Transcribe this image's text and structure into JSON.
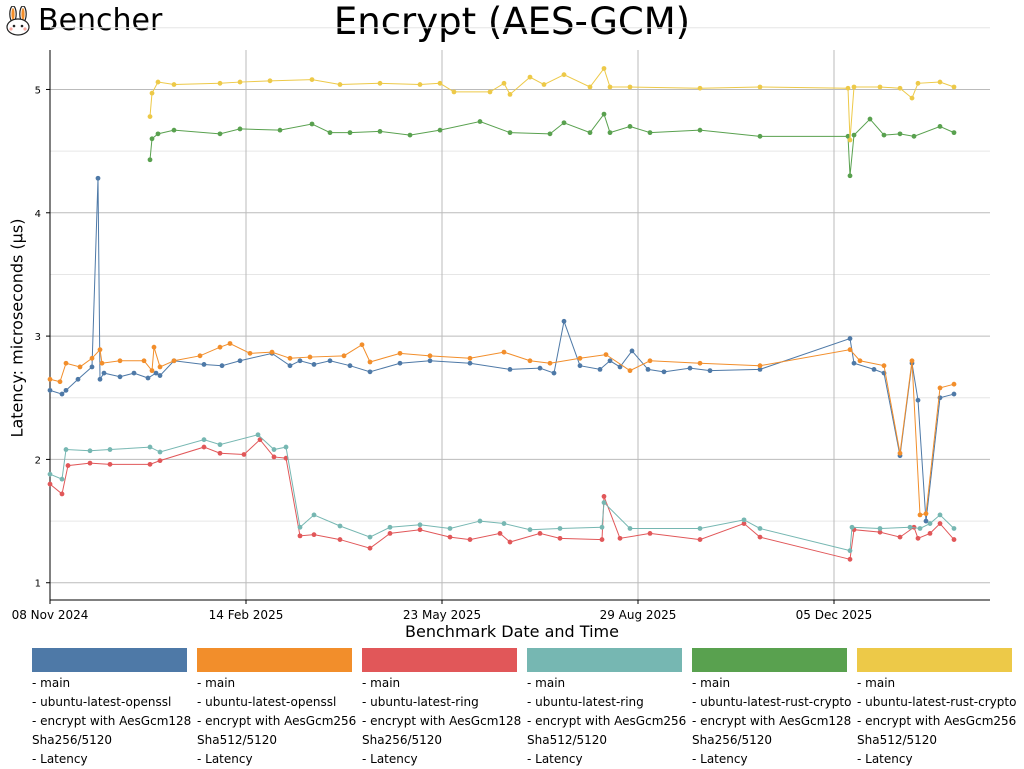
{
  "brand": {
    "name": "Bencher",
    "logo": "rabbit-icon"
  },
  "chart_data": {
    "type": "line",
    "title": "Encrypt (AES-GCM)",
    "xlabel": "Benchmark Date and Time",
    "ylabel": "Latency: microseconds (µs)",
    "xlim": [
      "2024-11-08",
      "2026-02-21"
    ],
    "ylim": [
      0.86,
      5.32
    ],
    "yticks": [
      1,
      2,
      3,
      4,
      5
    ],
    "xticks": [
      {
        "date": "2024-11-08",
        "label": "08 Nov 2024"
      },
      {
        "date": "2025-02-14",
        "label": "14 Feb 2025"
      },
      {
        "date": "2025-05-23",
        "label": "23 May 2025"
      },
      {
        "date": "2025-08-29",
        "label": "29 Aug 2025"
      },
      {
        "date": "2025-12-05",
        "label": "05 Dec 2025"
      }
    ],
    "grid": true,
    "legend": "bottom",
    "series": [
      {
        "color": "#4e79a7",
        "legend": [
          "- main",
          "- ubuntu-latest-openssl",
          "- encrypt with AesGcm128Sha256/5120",
          "- Latency"
        ],
        "points": [
          [
            "2024-11-08",
            2.56
          ],
          [
            "2024-11-14",
            2.53
          ],
          [
            "2024-11-16",
            2.56
          ],
          [
            "2024-11-22",
            2.65
          ],
          [
            "2024-11-29",
            2.75
          ],
          [
            "2024-12-02",
            4.28
          ],
          [
            "2024-12-03",
            2.65
          ],
          [
            "2024-12-05",
            2.7
          ],
          [
            "2024-12-13",
            2.67
          ],
          [
            "2024-12-20",
            2.7
          ],
          [
            "2024-12-27",
            2.66
          ],
          [
            "2024-12-31",
            2.7
          ],
          [
            "2025-01-02",
            2.68
          ],
          [
            "2025-01-09",
            2.8
          ],
          [
            "2025-01-24",
            2.77
          ],
          [
            "2025-02-02",
            2.76
          ],
          [
            "2025-02-11",
            2.8
          ],
          [
            "2025-02-27",
            2.86
          ],
          [
            "2025-03-08",
            2.76
          ],
          [
            "2025-03-13",
            2.8
          ],
          [
            "2025-03-20",
            2.77
          ],
          [
            "2025-03-28",
            2.8
          ],
          [
            "2025-04-07",
            2.76
          ],
          [
            "2025-04-17",
            2.71
          ],
          [
            "2025-05-02",
            2.78
          ],
          [
            "2025-05-17",
            2.8
          ],
          [
            "2025-06-06",
            2.78
          ],
          [
            "2025-06-26",
            2.73
          ],
          [
            "2025-07-11",
            2.74
          ],
          [
            "2025-07-18",
            2.7
          ],
          [
            "2025-07-23",
            3.12
          ],
          [
            "2025-07-31",
            2.76
          ],
          [
            "2025-08-10",
            2.73
          ],
          [
            "2025-08-15",
            2.8
          ],
          [
            "2025-08-20",
            2.75
          ],
          [
            "2025-08-26",
            2.88
          ],
          [
            "2025-09-03",
            2.73
          ],
          [
            "2025-09-11",
            2.71
          ],
          [
            "2025-09-24",
            2.74
          ],
          [
            "2025-10-04",
            2.72
          ],
          [
            "2025-10-29",
            2.73
          ],
          [
            "2025-12-13",
            2.98
          ],
          [
            "2025-12-15",
            2.78
          ],
          [
            "2025-12-25",
            2.73
          ],
          [
            "2025-12-30",
            2.7
          ],
          [
            "2026-01-07",
            2.03
          ],
          [
            "2026-01-13",
            2.78
          ],
          [
            "2026-01-16",
            2.48
          ],
          [
            "2026-01-20",
            1.5
          ],
          [
            "2026-01-27",
            2.5
          ],
          [
            "2026-02-03",
            2.53
          ]
        ]
      },
      {
        "color": "#f28e2b",
        "legend": [
          "- main",
          "- ubuntu-latest-openssl",
          "- encrypt with AesGcm256Sha512/5120",
          "- Latency"
        ],
        "points": [
          [
            "2024-11-08",
            2.65
          ],
          [
            "2024-11-13",
            2.63
          ],
          [
            "2024-11-16",
            2.78
          ],
          [
            "2024-11-23",
            2.75
          ],
          [
            "2024-11-29",
            2.82
          ],
          [
            "2024-12-03",
            2.89
          ],
          [
            "2024-12-04",
            2.78
          ],
          [
            "2024-12-13",
            2.8
          ],
          [
            "2024-12-25",
            2.8
          ],
          [
            "2024-12-29",
            2.72
          ],
          [
            "2024-12-30",
            2.91
          ],
          [
            "2025-01-02",
            2.75
          ],
          [
            "2025-01-09",
            2.8
          ],
          [
            "2025-01-22",
            2.84
          ],
          [
            "2025-02-01",
            2.91
          ],
          [
            "2025-02-06",
            2.94
          ],
          [
            "2025-02-16",
            2.86
          ],
          [
            "2025-02-27",
            2.87
          ],
          [
            "2025-03-08",
            2.82
          ],
          [
            "2025-03-18",
            2.83
          ],
          [
            "2025-04-04",
            2.84
          ],
          [
            "2025-04-13",
            2.93
          ],
          [
            "2025-04-17",
            2.79
          ],
          [
            "2025-05-02",
            2.86
          ],
          [
            "2025-05-17",
            2.84
          ],
          [
            "2025-06-06",
            2.82
          ],
          [
            "2025-06-23",
            2.87
          ],
          [
            "2025-07-06",
            2.8
          ],
          [
            "2025-07-16",
            2.78
          ],
          [
            "2025-07-31",
            2.82
          ],
          [
            "2025-08-13",
            2.85
          ],
          [
            "2025-08-25",
            2.72
          ],
          [
            "2025-09-04",
            2.8
          ],
          [
            "2025-09-29",
            2.78
          ],
          [
            "2025-10-29",
            2.76
          ],
          [
            "2025-12-13",
            2.89
          ],
          [
            "2025-12-18",
            2.8
          ],
          [
            "2025-12-30",
            2.76
          ],
          [
            "2026-01-07",
            2.05
          ],
          [
            "2026-01-13",
            2.8
          ],
          [
            "2026-01-17",
            1.55
          ],
          [
            "2026-01-20",
            1.56
          ],
          [
            "2026-01-27",
            2.58
          ],
          [
            "2026-02-03",
            2.61
          ]
        ]
      },
      {
        "color": "#e15759",
        "legend": [
          "- main",
          "- ubuntu-latest-ring",
          "- encrypt with AesGcm128Sha256/5120",
          "- Latency"
        ],
        "points": [
          [
            "2024-11-08",
            1.8
          ],
          [
            "2024-11-14",
            1.72
          ],
          [
            "2024-11-17",
            1.95
          ],
          [
            "2024-11-28",
            1.97
          ],
          [
            "2024-12-08",
            1.96
          ],
          [
            "2024-12-28",
            1.96
          ],
          [
            "2025-01-02",
            1.99
          ],
          [
            "2025-01-24",
            2.1
          ],
          [
            "2025-02-01",
            2.05
          ],
          [
            "2025-02-13",
            2.04
          ],
          [
            "2025-02-21",
            2.16
          ],
          [
            "2025-02-28",
            2.02
          ],
          [
            "2025-03-06",
            2.01
          ],
          [
            "2025-03-13",
            1.38
          ],
          [
            "2025-03-20",
            1.39
          ],
          [
            "2025-04-02",
            1.35
          ],
          [
            "2025-04-17",
            1.28
          ],
          [
            "2025-04-27",
            1.4
          ],
          [
            "2025-05-12",
            1.43
          ],
          [
            "2025-05-27",
            1.37
          ],
          [
            "2025-06-06",
            1.35
          ],
          [
            "2025-06-21",
            1.4
          ],
          [
            "2025-06-26",
            1.33
          ],
          [
            "2025-07-11",
            1.4
          ],
          [
            "2025-07-21",
            1.36
          ],
          [
            "2025-08-11",
            1.35
          ],
          [
            "2025-08-12",
            1.7
          ],
          [
            "2025-08-20",
            1.36
          ],
          [
            "2025-09-04",
            1.4
          ],
          [
            "2025-09-29",
            1.35
          ],
          [
            "2025-10-21",
            1.48
          ],
          [
            "2025-10-29",
            1.37
          ],
          [
            "2025-12-13",
            1.19
          ],
          [
            "2025-12-15",
            1.43
          ],
          [
            "2025-12-28",
            1.41
          ],
          [
            "2026-01-07",
            1.37
          ],
          [
            "2026-01-14",
            1.45
          ],
          [
            "2026-01-16",
            1.36
          ],
          [
            "2026-01-22",
            1.4
          ],
          [
            "2026-01-27",
            1.48
          ],
          [
            "2026-02-03",
            1.35
          ]
        ]
      },
      {
        "color": "#76b7b2",
        "legend": [
          "- main",
          "- ubuntu-latest-ring",
          "- encrypt with AesGcm256Sha512/5120",
          "- Latency"
        ],
        "points": [
          [
            "2024-11-08",
            1.88
          ],
          [
            "2024-11-14",
            1.84
          ],
          [
            "2024-11-16",
            2.08
          ],
          [
            "2024-11-28",
            2.07
          ],
          [
            "2024-12-08",
            2.08
          ],
          [
            "2024-12-28",
            2.1
          ],
          [
            "2025-01-02",
            2.06
          ],
          [
            "2025-01-24",
            2.16
          ],
          [
            "2025-02-01",
            2.12
          ],
          [
            "2025-02-20",
            2.2
          ],
          [
            "2025-02-28",
            2.08
          ],
          [
            "2025-03-06",
            2.1
          ],
          [
            "2025-03-13",
            1.45
          ],
          [
            "2025-03-20",
            1.55
          ],
          [
            "2025-04-02",
            1.46
          ],
          [
            "2025-04-17",
            1.37
          ],
          [
            "2025-04-27",
            1.45
          ],
          [
            "2025-05-12",
            1.47
          ],
          [
            "2025-05-27",
            1.44
          ],
          [
            "2025-06-11",
            1.5
          ],
          [
            "2025-06-23",
            1.48
          ],
          [
            "2025-07-06",
            1.43
          ],
          [
            "2025-07-21",
            1.44
          ],
          [
            "2025-08-11",
            1.45
          ],
          [
            "2025-08-12",
            1.65
          ],
          [
            "2025-08-25",
            1.44
          ],
          [
            "2025-09-29",
            1.44
          ],
          [
            "2025-10-21",
            1.51
          ],
          [
            "2025-10-29",
            1.44
          ],
          [
            "2025-12-13",
            1.26
          ],
          [
            "2025-12-14",
            1.45
          ],
          [
            "2025-12-28",
            1.44
          ],
          [
            "2026-01-12",
            1.45
          ],
          [
            "2026-01-17",
            1.44
          ],
          [
            "2026-01-22",
            1.48
          ],
          [
            "2026-01-27",
            1.55
          ],
          [
            "2026-02-03",
            1.44
          ]
        ]
      },
      {
        "color": "#59a14f",
        "legend": [
          "- main",
          "- ubuntu-latest-rust-crypto",
          "- encrypt with AesGcm128Sha256/5120",
          "- Latency"
        ],
        "points": [
          [
            "2024-12-28",
            4.43
          ],
          [
            "2024-12-29",
            4.6
          ],
          [
            "2025-01-01",
            4.64
          ],
          [
            "2025-01-09",
            4.67
          ],
          [
            "2025-02-01",
            4.64
          ],
          [
            "2025-02-11",
            4.68
          ],
          [
            "2025-03-03",
            4.67
          ],
          [
            "2025-03-19",
            4.72
          ],
          [
            "2025-03-28",
            4.65
          ],
          [
            "2025-04-07",
            4.65
          ],
          [
            "2025-04-22",
            4.66
          ],
          [
            "2025-05-07",
            4.63
          ],
          [
            "2025-05-22",
            4.67
          ],
          [
            "2025-06-11",
            4.74
          ],
          [
            "2025-06-26",
            4.65
          ],
          [
            "2025-07-16",
            4.64
          ],
          [
            "2025-07-23",
            4.73
          ],
          [
            "2025-08-05",
            4.65
          ],
          [
            "2025-08-12",
            4.8
          ],
          [
            "2025-08-15",
            4.65
          ],
          [
            "2025-08-25",
            4.7
          ],
          [
            "2025-09-04",
            4.65
          ],
          [
            "2025-09-29",
            4.67
          ],
          [
            "2025-10-29",
            4.62
          ],
          [
            "2025-12-12",
            4.62
          ],
          [
            "2025-12-13",
            4.3
          ],
          [
            "2025-12-15",
            4.63
          ],
          [
            "2025-12-23",
            4.76
          ],
          [
            "2025-12-30",
            4.63
          ],
          [
            "2026-01-07",
            4.64
          ],
          [
            "2026-01-14",
            4.62
          ],
          [
            "2026-01-27",
            4.7
          ],
          [
            "2026-02-03",
            4.65
          ]
        ]
      },
      {
        "color": "#edc948",
        "legend": [
          "- main",
          "- ubuntu-latest-rust-crypto",
          "- encrypt with AesGcm256Sha512/5120",
          "- Latency"
        ],
        "points": [
          [
            "2024-12-28",
            4.78
          ],
          [
            "2024-12-29",
            4.97
          ],
          [
            "2025-01-01",
            5.06
          ],
          [
            "2025-01-09",
            5.04
          ],
          [
            "2025-02-01",
            5.05
          ],
          [
            "2025-02-11",
            5.06
          ],
          [
            "2025-02-26",
            5.07
          ],
          [
            "2025-03-19",
            5.08
          ],
          [
            "2025-04-02",
            5.04
          ],
          [
            "2025-04-22",
            5.05
          ],
          [
            "2025-05-12",
            5.04
          ],
          [
            "2025-05-22",
            5.05
          ],
          [
            "2025-05-29",
            4.98
          ],
          [
            "2025-06-16",
            4.98
          ],
          [
            "2025-06-23",
            5.05
          ],
          [
            "2025-06-26",
            4.96
          ],
          [
            "2025-07-06",
            5.1
          ],
          [
            "2025-07-13",
            5.04
          ],
          [
            "2025-07-23",
            5.12
          ],
          [
            "2025-08-05",
            5.02
          ],
          [
            "2025-08-12",
            5.17
          ],
          [
            "2025-08-15",
            5.02
          ],
          [
            "2025-08-25",
            5.02
          ],
          [
            "2025-09-29",
            5.01
          ],
          [
            "2025-10-29",
            5.02
          ],
          [
            "2025-12-12",
            5.01
          ],
          [
            "2025-12-13",
            4.59
          ],
          [
            "2025-12-15",
            5.02
          ],
          [
            "2025-12-28",
            5.02
          ],
          [
            "2026-01-07",
            5.01
          ],
          [
            "2026-01-13",
            4.93
          ],
          [
            "2026-01-16",
            5.05
          ],
          [
            "2026-01-27",
            5.06
          ],
          [
            "2026-02-03",
            5.02
          ]
        ]
      }
    ]
  }
}
